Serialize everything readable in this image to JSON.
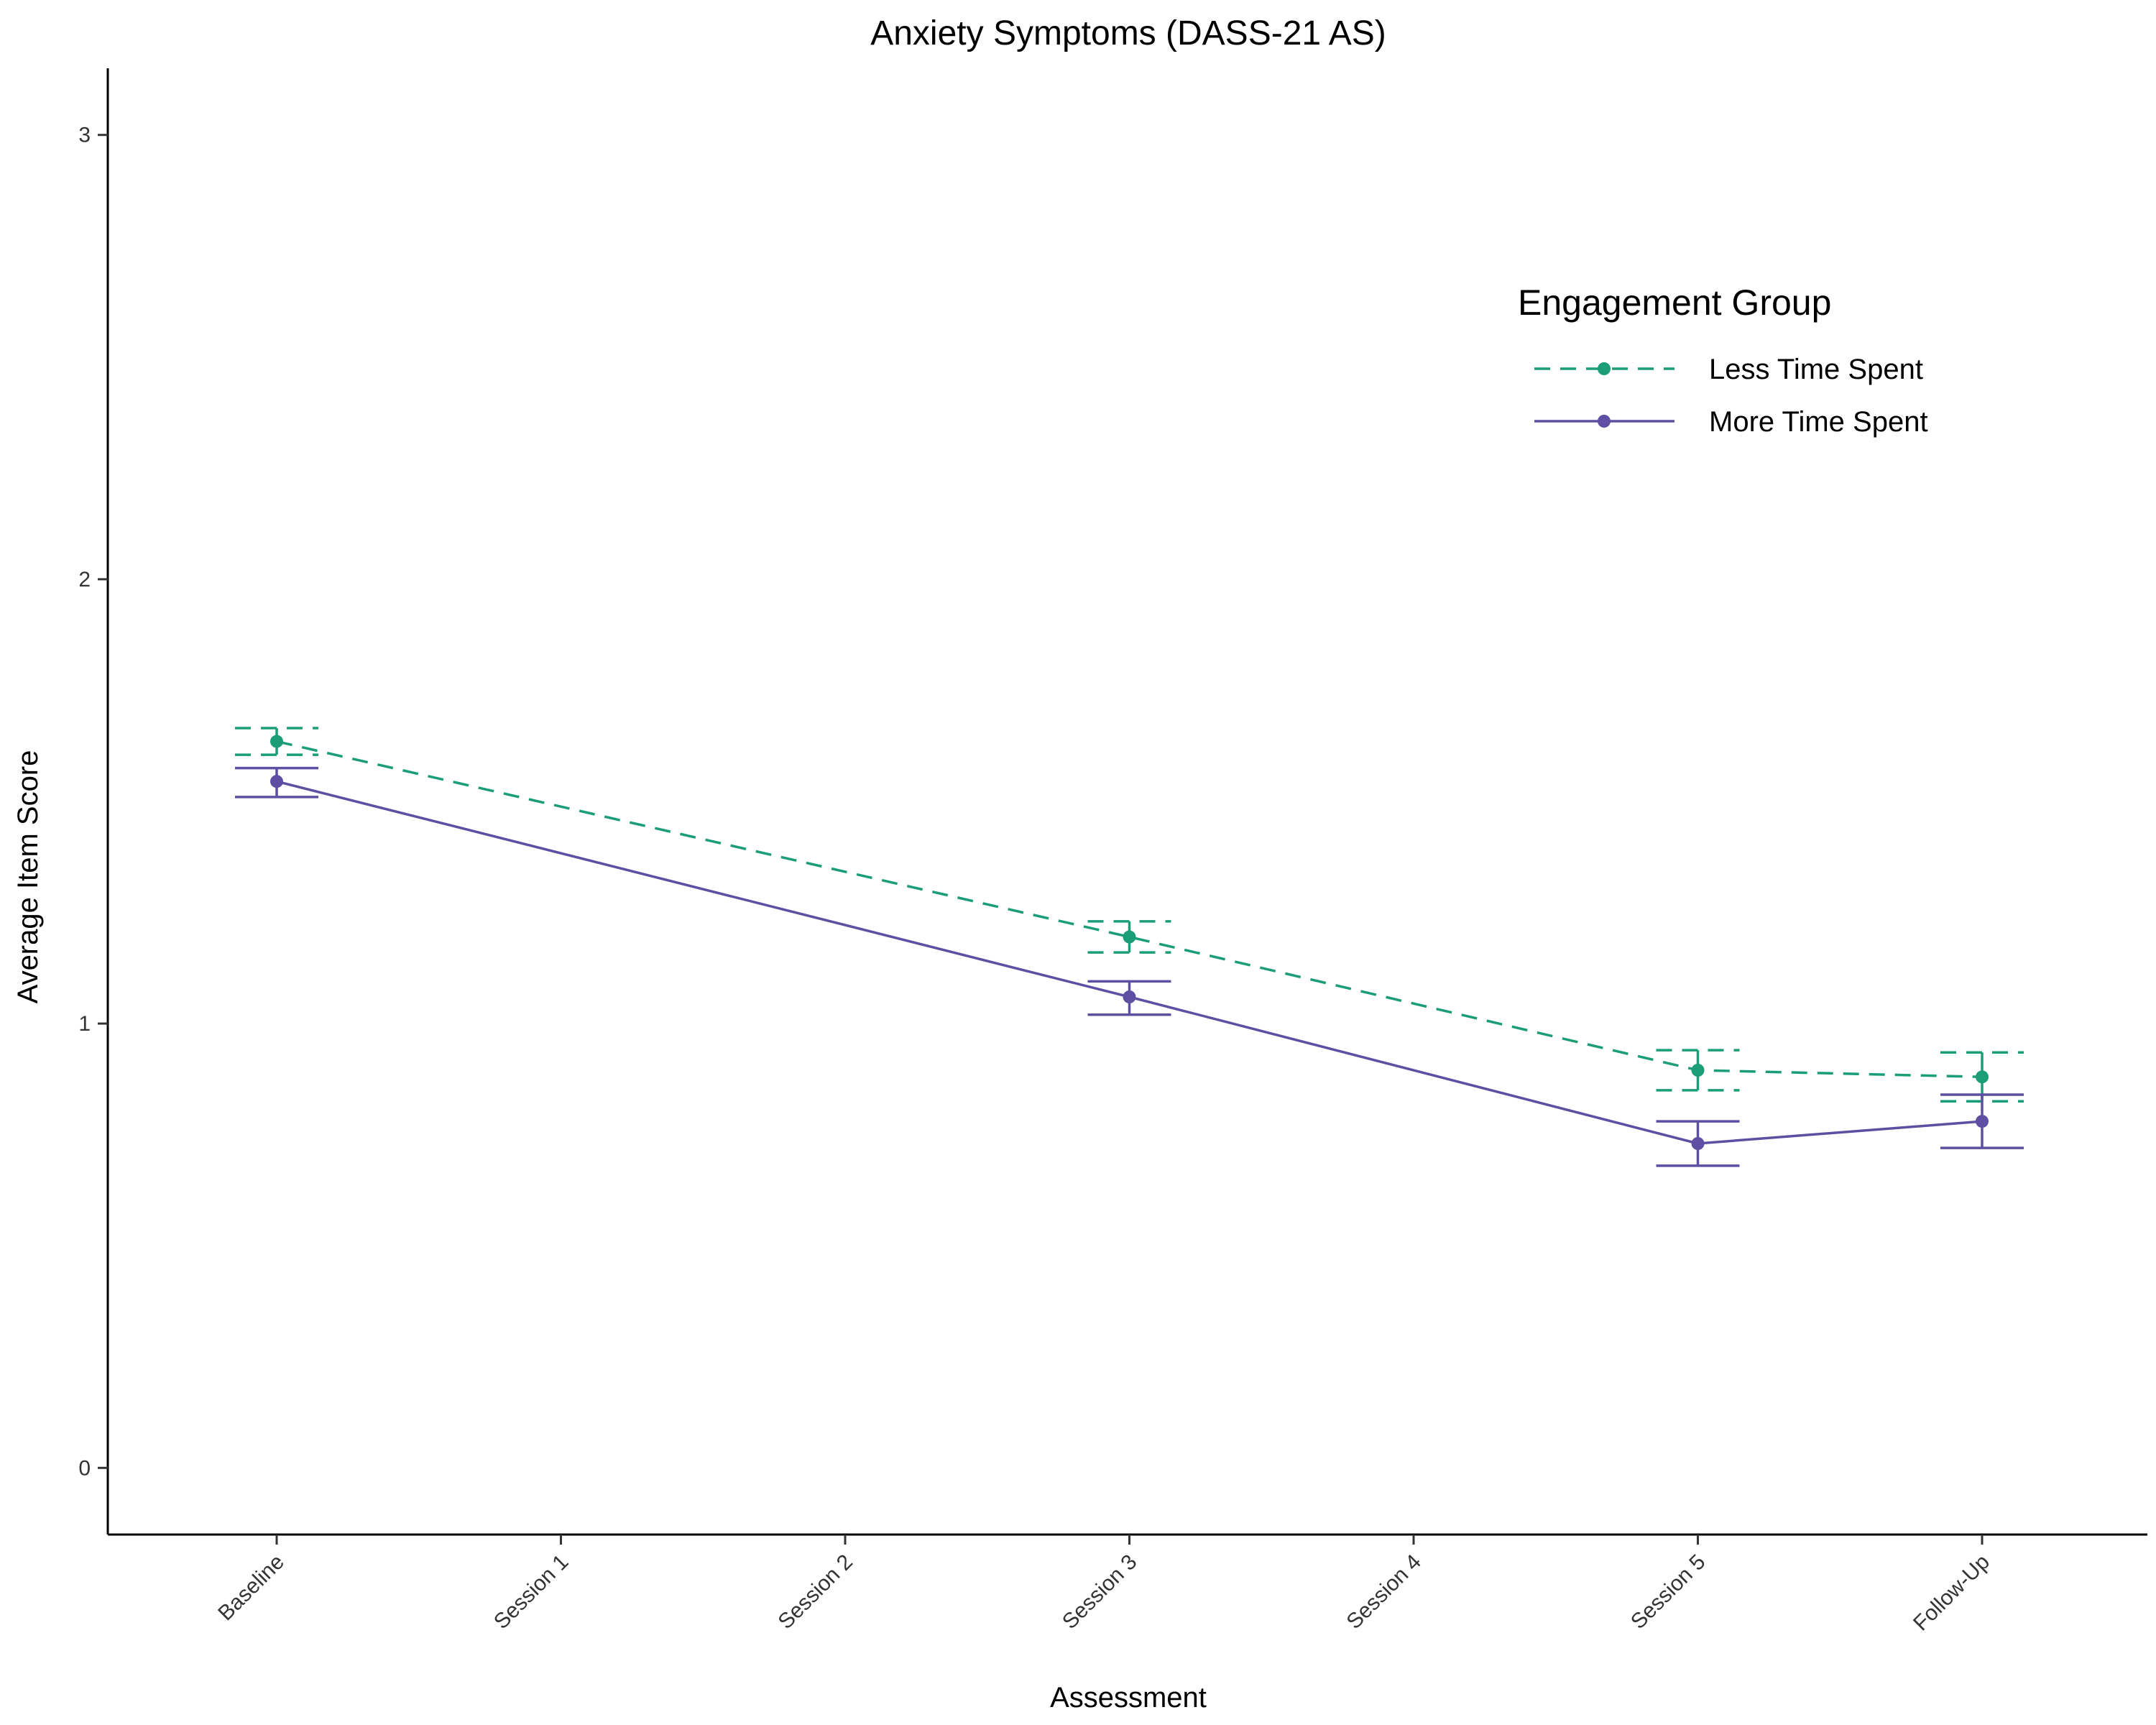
{
  "chart_data": {
    "type": "line",
    "title": "Anxiety Symptoms (DASS-21 AS)",
    "xlabel": "Assessment",
    "ylabel": "Average Item Score",
    "categories": [
      "Baseline",
      "Session 1",
      "Session 2",
      "Session 3",
      "Session 4",
      "Session 5",
      "Follow-Up"
    ],
    "ylim": [
      -0.15,
      3.15
    ],
    "yticks": [
      "0",
      "1",
      "2",
      "3"
    ],
    "grid": false,
    "legend": {
      "title": "Engagement Group",
      "placement": "top-right"
    },
    "series": [
      {
        "name": "Less Time Spent",
        "color": "#1B9E77",
        "line_style": "dashed",
        "points": [
          {
            "category": "Baseline",
            "y": 1.635,
            "lower": 1.605,
            "upper": 1.665
          },
          {
            "category": "Session 3",
            "y": 1.195,
            "lower": 1.16,
            "upper": 1.23
          },
          {
            "category": "Session 5",
            "y": 0.895,
            "lower": 0.85,
            "upper": 0.94
          },
          {
            "category": "Follow-Up",
            "y": 0.88,
            "lower": 0.825,
            "upper": 0.935
          }
        ]
      },
      {
        "name": "More Time Spent",
        "color": "#5E4FA2",
        "line_style": "solid",
        "points": [
          {
            "category": "Baseline",
            "y": 1.545,
            "lower": 1.51,
            "upper": 1.575
          },
          {
            "category": "Session 3",
            "y": 1.06,
            "lower": 1.02,
            "upper": 1.095
          },
          {
            "category": "Session 5",
            "y": 0.73,
            "lower": 0.68,
            "upper": 0.78
          },
          {
            "category": "Follow-Up",
            "y": 0.78,
            "lower": 0.72,
            "upper": 0.84
          }
        ]
      }
    ]
  }
}
